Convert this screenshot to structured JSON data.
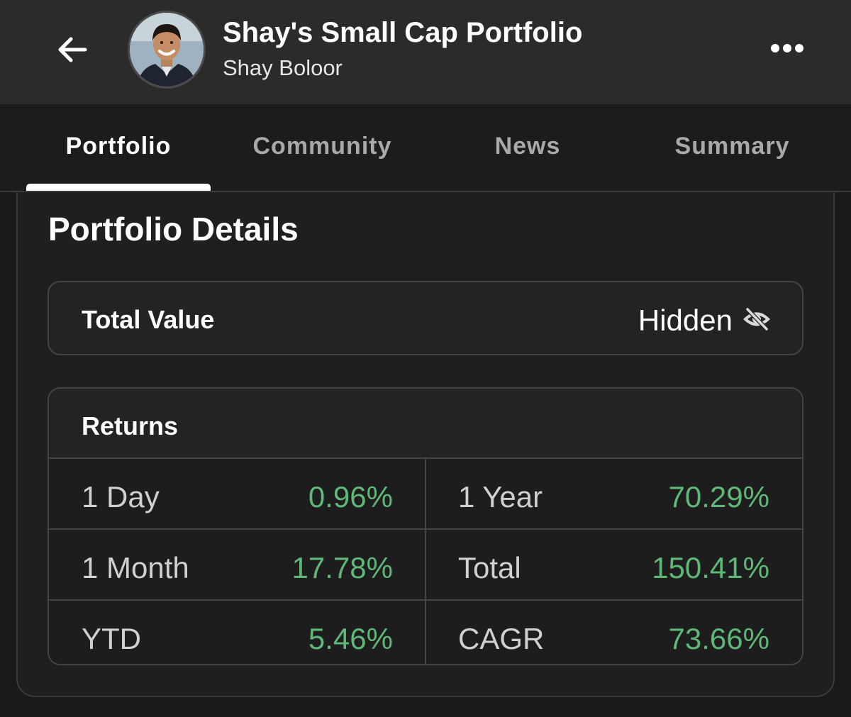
{
  "header": {
    "title": "Shay's Small Cap Portfolio",
    "subtitle": "Shay Boloor"
  },
  "tabs": [
    {
      "label": "Portfolio",
      "active": true
    },
    {
      "label": "Community",
      "active": false
    },
    {
      "label": "News",
      "active": false
    },
    {
      "label": "Summary",
      "active": false
    }
  ],
  "details": {
    "title": "Portfolio Details",
    "total_value_label": "Total Value",
    "total_value": "Hidden"
  },
  "returns": {
    "title": "Returns",
    "rows": [
      [
        {
          "label": "1 Day",
          "value": "0.96%"
        },
        {
          "label": "1 Year",
          "value": "70.29%"
        }
      ],
      [
        {
          "label": "1 Month",
          "value": "17.78%"
        },
        {
          "label": "Total",
          "value": "150.41%"
        }
      ],
      [
        {
          "label": "YTD",
          "value": "5.46%"
        },
        {
          "label": "CAGR",
          "value": "73.66%"
        }
      ]
    ]
  },
  "colors": {
    "header_bg": "#2b2b2b",
    "positive": "#5fb878"
  }
}
